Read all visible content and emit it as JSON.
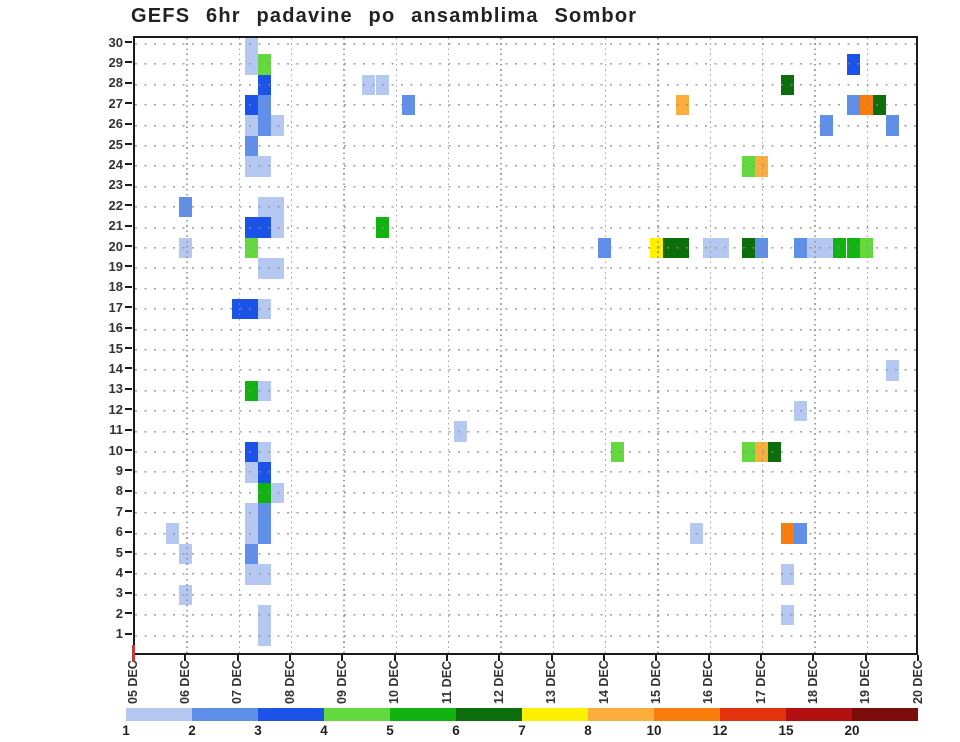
{
  "title": "GEFS 6hr padavine po ansamblima Sombor",
  "y_axis": {
    "tick_labels": [
      "30",
      "29",
      "28",
      "27",
      "26",
      "25",
      "24",
      "23",
      "22",
      "21",
      "20",
      "19",
      "18",
      "17",
      "16",
      "15",
      "14",
      "13",
      "12",
      "11",
      "10",
      "9",
      "8",
      "7",
      "6",
      "5",
      "4",
      "3",
      "2",
      "1"
    ]
  },
  "x_axis": {
    "date_labels": [
      "05 DEC",
      "06 DEC",
      "07 DEC",
      "08 DEC",
      "09 DEC",
      "10 DEC",
      "11 DEC",
      "12 DEC",
      "13 DEC",
      "14 DEC",
      "15 DEC",
      "16 DEC",
      "17 DEC",
      "18 DEC",
      "19 DEC",
      "20 DEC"
    ],
    "slots_per_day": 4,
    "slot_hours": 6
  },
  "legend": {
    "tick_labels": [
      "1",
      "2",
      "3",
      "4",
      "5",
      "6",
      "7",
      "8",
      "10",
      "12",
      "15",
      "20"
    ],
    "colors": [
      "#b4c8f2",
      "#5f8fe8",
      "#1b52e8",
      "#63d83f",
      "#12b212",
      "#0b6e0b",
      "#fff000",
      "#fbae3c",
      "#f87d0c",
      "#e2330d",
      "#b31111",
      "#7c0c09"
    ]
  },
  "origin_marker_color": "#c53b35",
  "chart_data": {
    "type": "heatmap",
    "title": "GEFS 6hr padavine po ansamblima Sombor",
    "x_description": "6-hour time slots from 05 DEC to 20 DEC (4 slots per day)",
    "y_description": "ensemble members 1-30",
    "level_thresholds": [
      1,
      2,
      3,
      4,
      5,
      6,
      7,
      8,
      10,
      12,
      15,
      20
    ],
    "level_colors": [
      "#b4c8f2",
      "#5f8fe8",
      "#1b52e8",
      "#63d83f",
      "#12b212",
      "#0b6e0b",
      "#fff000",
      "#fbae3c",
      "#f87d0c",
      "#e2330d",
      "#b31111",
      "#7c0c09"
    ],
    "grid": {
      "days": 15,
      "rows": 30
    },
    "cells": [
      [
        2,
        6,
        1
      ],
      [
        3,
        22,
        2
      ],
      [
        3,
        20,
        1
      ],
      [
        3,
        5,
        1
      ],
      [
        3,
        3,
        1
      ],
      [
        7,
        17,
        3
      ],
      [
        8,
        17,
        3
      ],
      [
        9,
        17,
        1
      ],
      [
        8,
        30,
        1
      ],
      [
        8,
        29,
        1
      ],
      [
        9,
        29,
        4
      ],
      [
        9,
        28,
        3
      ],
      [
        8,
        27,
        3
      ],
      [
        9,
        27,
        2
      ],
      [
        8,
        26,
        1
      ],
      [
        9,
        26,
        2
      ],
      [
        10,
        26,
        1
      ],
      [
        8,
        25,
        2
      ],
      [
        8,
        24,
        1
      ],
      [
        9,
        24,
        1
      ],
      [
        9,
        22,
        1
      ],
      [
        10,
        22,
        1
      ],
      [
        8,
        21,
        3
      ],
      [
        9,
        21,
        3
      ],
      [
        10,
        21,
        1
      ],
      [
        8,
        20,
        4
      ],
      [
        9,
        19,
        1
      ],
      [
        10,
        19,
        1
      ],
      [
        8,
        13,
        5
      ],
      [
        9,
        13,
        1
      ],
      [
        8,
        10,
        3
      ],
      [
        9,
        10,
        1
      ],
      [
        8,
        9,
        1
      ],
      [
        9,
        9,
        3
      ],
      [
        9,
        8,
        5
      ],
      [
        10,
        8,
        1
      ],
      [
        8,
        7,
        1
      ],
      [
        9,
        7,
        2
      ],
      [
        8,
        6,
        1
      ],
      [
        9,
        6,
        2
      ],
      [
        8,
        5,
        2
      ],
      [
        8,
        4,
        1
      ],
      [
        9,
        4,
        1
      ],
      [
        9,
        2,
        1
      ],
      [
        9,
        1,
        1
      ],
      [
        17,
        28,
        1
      ],
      [
        18,
        28,
        1
      ],
      [
        20,
        27,
        2
      ],
      [
        18,
        21,
        5
      ],
      [
        24,
        11,
        1
      ],
      [
        35,
        20,
        2
      ],
      [
        39,
        20,
        7
      ],
      [
        40,
        20,
        6
      ],
      [
        41,
        20,
        6
      ],
      [
        43,
        20,
        1
      ],
      [
        44,
        20,
        1
      ],
      [
        41,
        27,
        8
      ],
      [
        36,
        10,
        4
      ],
      [
        42,
        6,
        1
      ],
      [
        46,
        24,
        4
      ],
      [
        47,
        24,
        8
      ],
      [
        46,
        20,
        6
      ],
      [
        47,
        20,
        2
      ],
      [
        46,
        10,
        4
      ],
      [
        47,
        10,
        8
      ],
      [
        48,
        10,
        6
      ],
      [
        49,
        28,
        6
      ],
      [
        49,
        6,
        9
      ],
      [
        50,
        6,
        2
      ],
      [
        49,
        4,
        1
      ],
      [
        49,
        2,
        1
      ],
      [
        50,
        12,
        1
      ],
      [
        50,
        20,
        2
      ],
      [
        51,
        20,
        1
      ],
      [
        52,
        20,
        1
      ],
      [
        53,
        20,
        5
      ],
      [
        54,
        20,
        5
      ],
      [
        55,
        20,
        4
      ],
      [
        52,
        26,
        2
      ],
      [
        54,
        29,
        3
      ],
      [
        54,
        27,
        2
      ],
      [
        55,
        27,
        9
      ],
      [
        56,
        27,
        6
      ],
      [
        57,
        26,
        2
      ],
      [
        57,
        14,
        1
      ]
    ]
  }
}
